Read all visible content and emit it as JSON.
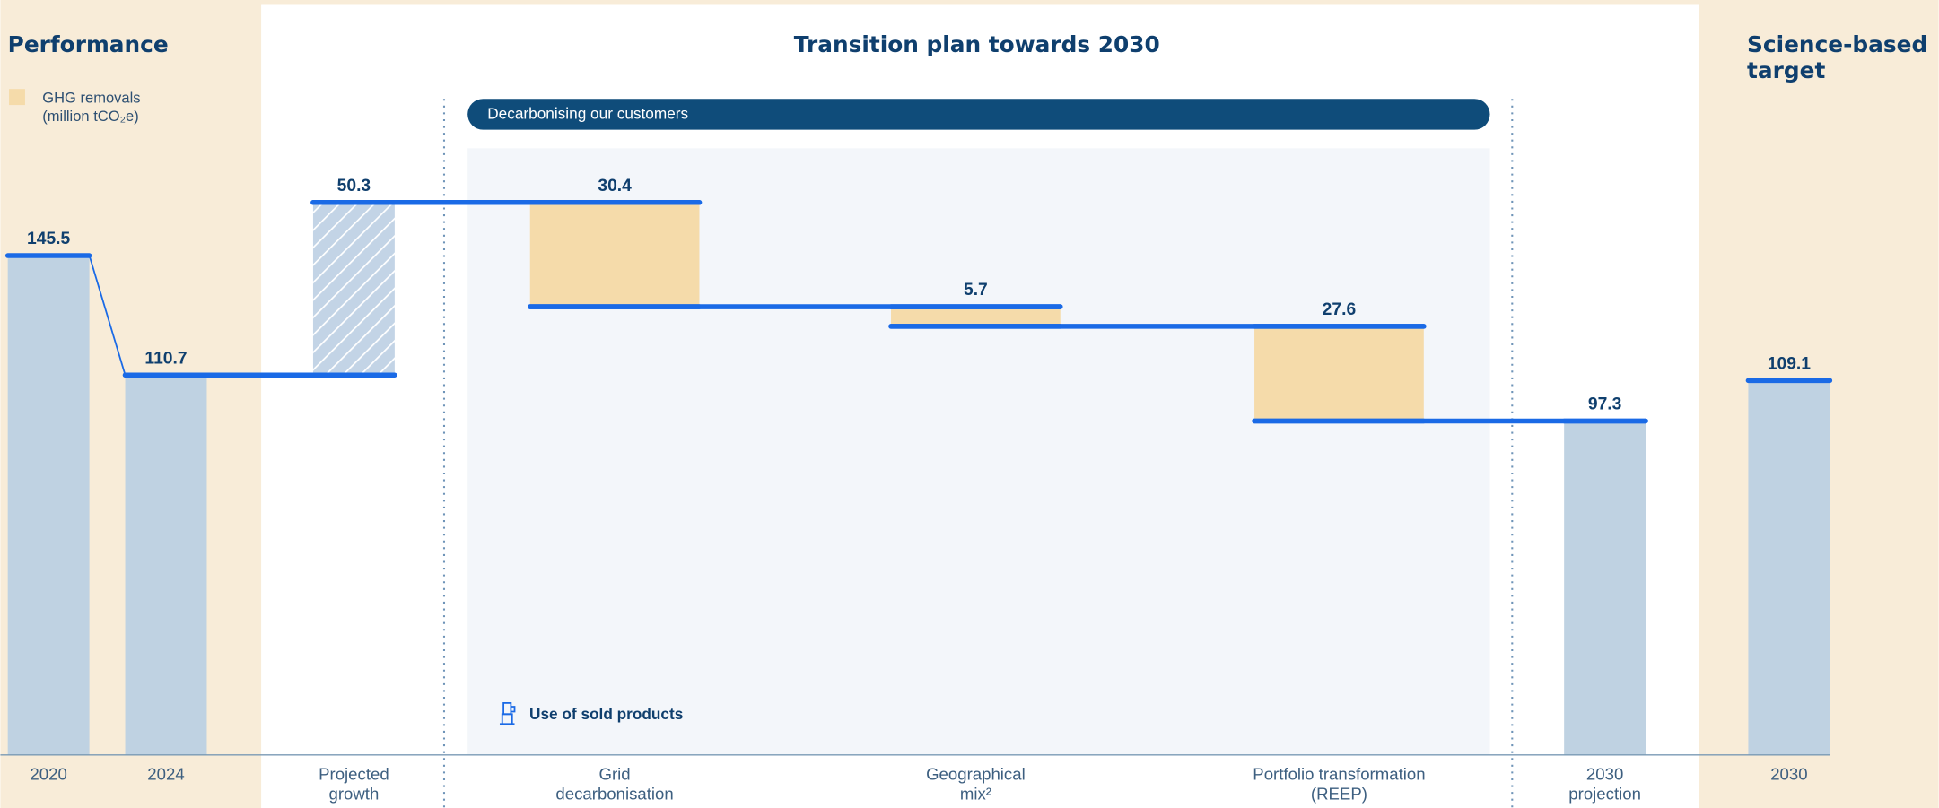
{
  "chart_data": {
    "type": "waterfall",
    "sections": [
      "Performance",
      "Transition plan towards 2030",
      "Science-based target"
    ],
    "legend_label": "GHG removals (million tCO₂e)",
    "banner": "Decarbonising our customers",
    "annotation": "Use of sold products",
    "categories": [
      "2020",
      "2024",
      "Projected growth",
      "Grid decarbonisation",
      "Geographical mix²",
      "Portfolio transformation (REEP)",
      "2030 projection",
      "2030"
    ],
    "values": [
      145.5,
      110.7,
      50.3,
      30.4,
      5.7,
      27.6,
      97.3,
      109.1
    ],
    "measures": [
      "total",
      "total",
      "increase",
      "decrease",
      "decrease",
      "decrease",
      "total",
      "total"
    ],
    "colors": {
      "total": "#bfd2e2",
      "increase": "#c3d4e6",
      "decrease": "#f5dbaa",
      "line": "#1a6ae6"
    },
    "ylim": [
      0,
      220
    ]
  }
}
